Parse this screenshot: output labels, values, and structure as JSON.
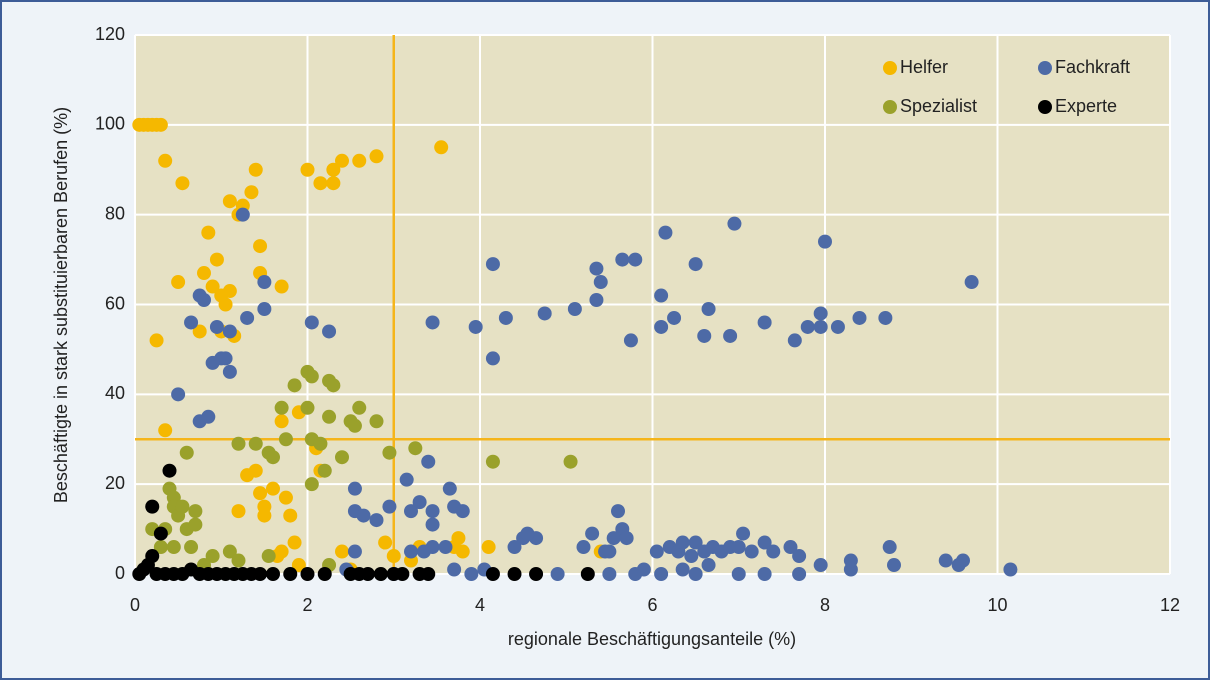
{
  "chart_data": {
    "type": "scatter",
    "xlabel": "regionale Beschäftigungsanteile (%)",
    "ylabel": "Beschäftigte in stark substituierbaren Berufen (%)",
    "xlim": [
      0,
      12
    ],
    "xticks": [
      0,
      2,
      4,
      6,
      8,
      10,
      12
    ],
    "ylim": [
      0,
      120
    ],
    "yticks": [
      0,
      20,
      40,
      60,
      80,
      100,
      120
    ],
    "grid": true,
    "legend_position": "upper-right",
    "reference_lines": {
      "x": 3,
      "y": 30,
      "color": "#f5b51a"
    },
    "series": [
      {
        "name": "Helfer",
        "color": "#f5b800",
        "x": [
          0.05,
          0.1,
          0.15,
          0.2,
          0.25,
          0.3,
          0.35,
          0.55,
          0.25,
          0.35,
          0.5,
          0.75,
          0.8,
          0.85,
          0.9,
          0.95,
          1.0,
          1.05,
          1.1,
          1.1,
          1.2,
          1.25,
          1.35,
          1.4,
          1.45,
          1.45,
          1.7,
          1.15,
          1.0,
          1.3,
          1.4,
          1.45,
          1.5,
          1.5,
          1.6,
          1.7,
          1.75,
          1.8,
          1.7,
          1.65,
          1.85,
          2.0,
          2.15,
          2.3,
          2.3,
          2.4,
          2.6,
          2.8,
          3.55,
          1.9,
          2.1,
          2.15,
          2.4,
          2.9,
          3.0,
          3.3,
          3.7,
          3.75,
          3.8,
          4.1,
          5.4,
          1.2,
          1.9,
          2.5,
          3.2
        ],
        "values": [
          100,
          100,
          100,
          100,
          100,
          100,
          92,
          87,
          52,
          32,
          65,
          54,
          67,
          76,
          64,
          70,
          62,
          60,
          63,
          83,
          80,
          82,
          85,
          90,
          73,
          67,
          64,
          53,
          54,
          22,
          23,
          18,
          13,
          15,
          19,
          34,
          17,
          13,
          5,
          4,
          7,
          90,
          87,
          90,
          87,
          92,
          92,
          93,
          95,
          36,
          28,
          23,
          5,
          7,
          4,
          6,
          6,
          8,
          5,
          6,
          5,
          14,
          2,
          1,
          3
        ]
      },
      {
        "name": "Fachkraft",
        "color": "#4d6aa6",
        "x": [
          1.25,
          1.5,
          0.65,
          0.75,
          0.8,
          0.5,
          0.75,
          0.85,
          0.9,
          0.95,
          1.0,
          1.05,
          1.1,
          1.1,
          1.3,
          1.5,
          2.05,
          2.25,
          3.45,
          3.95,
          4.15,
          4.15,
          4.3,
          4.75,
          5.1,
          5.35,
          5.35,
          5.4,
          5.65,
          5.8,
          5.75,
          6.1,
          6.1,
          6.15,
          6.25,
          6.5,
          6.6,
          6.65,
          6.9,
          6.95,
          7.3,
          7.65,
          7.8,
          7.95,
          7.95,
          8.0,
          8.15,
          8.4,
          8.7,
          9.7,
          2.55,
          2.55,
          2.65,
          2.8,
          2.95,
          3.15,
          3.2,
          3.3,
          3.35,
          3.4,
          3.45,
          3.45,
          3.65,
          3.7,
          3.8,
          3.2,
          3.45,
          3.6,
          4.05,
          4.4,
          4.5,
          4.65,
          4.55,
          5.2,
          5.3,
          5.45,
          5.55,
          5.6,
          5.65,
          5.7,
          5.5,
          6.05,
          6.2,
          6.3,
          6.35,
          6.45,
          6.5,
          6.6,
          6.7,
          6.8,
          6.9,
          7.0,
          7.05,
          7.15,
          7.3,
          7.4,
          7.6,
          7.7,
          7.95,
          8.3,
          8.3,
          8.75,
          8.8,
          9.4,
          9.6,
          9.55,
          10.15,
          2.45,
          3.0,
          3.7,
          4.9,
          5.5,
          5.8,
          6.1,
          6.5,
          7.0,
          7.3,
          7.7,
          6.35,
          6.65,
          5.9,
          2.55,
          3.9
        ],
        "values": [
          80,
          65,
          56,
          62,
          61,
          40,
          34,
          35,
          47,
          55,
          48,
          48,
          54,
          45,
          57,
          59,
          56,
          54,
          56,
          55,
          69,
          48,
          57,
          58,
          59,
          68,
          61,
          65,
          70,
          70,
          52,
          62,
          55,
          76,
          57,
          69,
          53,
          59,
          53,
          78,
          56,
          52,
          55,
          58,
          55,
          74,
          55,
          57,
          57,
          65,
          19,
          14,
          13,
          12,
          15,
          21,
          14,
          16,
          5,
          25,
          11,
          14,
          19,
          15,
          14,
          5,
          6,
          6,
          1,
          6,
          8,
          8,
          9,
          6,
          9,
          5,
          8,
          14,
          10,
          8,
          5,
          5,
          6,
          5,
          7,
          4,
          7,
          5,
          6,
          5,
          6,
          6,
          9,
          5,
          7,
          5,
          6,
          4,
          2,
          3,
          1,
          6,
          2,
          3,
          3,
          2,
          1,
          1,
          0,
          1,
          0,
          0,
          0,
          0,
          0,
          0,
          0,
          0,
          1,
          2,
          1,
          5,
          0
        ]
      },
      {
        "name": "Spezialist",
        "color": "#9aa12b",
        "x": [
          0.6,
          0.4,
          0.45,
          0.45,
          0.5,
          0.55,
          0.6,
          0.7,
          0.7,
          0.35,
          0.2,
          0.3,
          0.45,
          0.65,
          0.9,
          1.1,
          1.2,
          1.4,
          1.55,
          1.6,
          1.75,
          1.7,
          1.85,
          2.0,
          2.05,
          2.0,
          2.05,
          2.15,
          2.25,
          2.3,
          2.25,
          2.2,
          2.05,
          2.4,
          2.5,
          2.55,
          2.6,
          2.8,
          2.95,
          3.25,
          4.15,
          5.05,
          1.55,
          1.2,
          2.25,
          0.8
        ],
        "values": [
          27,
          19,
          17,
          15,
          13,
          15,
          10,
          14,
          11,
          10,
          10,
          6,
          6,
          6,
          4,
          5,
          29,
          29,
          27,
          26,
          30,
          37,
          42,
          45,
          44,
          37,
          30,
          29,
          43,
          42,
          35,
          23,
          20,
          26,
          34,
          33,
          37,
          34,
          27,
          28,
          25,
          25,
          4,
          3,
          2,
          2
        ]
      },
      {
        "name": "Experte",
        "color": "#000000",
        "x": [
          0.4,
          0.2,
          0.3,
          0.2,
          0.15,
          0.1,
          0.05,
          0.25,
          0.35,
          0.45,
          0.55,
          0.65,
          0.75,
          0.85,
          0.95,
          1.05,
          1.15,
          1.25,
          1.35,
          1.45,
          1.6,
          1.8,
          2.0,
          2.2,
          2.5,
          2.6,
          2.7,
          2.85,
          3.0,
          3.1,
          3.3,
          3.4,
          4.15,
          4.4,
          4.65,
          5.25
        ],
        "values": [
          23,
          15,
          9,
          4,
          2,
          1,
          0,
          0,
          0,
          0,
          0,
          1,
          0,
          0,
          0,
          0,
          0,
          0,
          0,
          0,
          0,
          0,
          0,
          0,
          0,
          0,
          0,
          0,
          0,
          0,
          0,
          0,
          0,
          0,
          0,
          0
        ]
      }
    ]
  }
}
